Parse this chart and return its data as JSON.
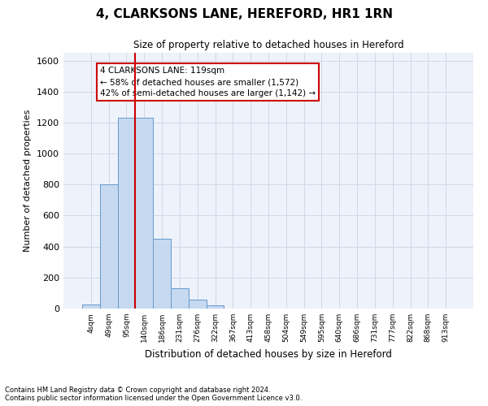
{
  "title": "4, CLARKSONS LANE, HEREFORD, HR1 1RN",
  "subtitle": "Size of property relative to detached houses in Hereford",
  "xlabel": "Distribution of detached houses by size in Hereford",
  "ylabel": "Number of detached properties",
  "bar_labels": [
    "4sqm",
    "49sqm",
    "95sqm",
    "140sqm",
    "186sqm",
    "231sqm",
    "276sqm",
    "322sqm",
    "367sqm",
    "413sqm",
    "458sqm",
    "504sqm",
    "549sqm",
    "595sqm",
    "640sqm",
    "686sqm",
    "731sqm",
    "777sqm",
    "822sqm",
    "868sqm",
    "913sqm"
  ],
  "bar_heights": [
    25,
    800,
    1230,
    1230,
    450,
    130,
    60,
    20,
    0,
    0,
    0,
    0,
    0,
    0,
    0,
    0,
    0,
    0,
    0,
    0,
    0
  ],
  "bar_color": "#c6d9f1",
  "bar_edge_color": "#6699cc",
  "vline_color": "#cc0000",
  "vline_x": 2.5,
  "annotation_text": "4 CLARKSONS LANE: 119sqm\n← 58% of detached houses are smaller (1,572)\n42% of semi-detached houses are larger (1,142) →",
  "annotation_box_color": "white",
  "annotation_box_edge_color": "#cc0000",
  "ylim": [
    0,
    1650
  ],
  "yticks": [
    0,
    200,
    400,
    600,
    800,
    1000,
    1200,
    1400,
    1600
  ],
  "grid_color": "#d0d8e8",
  "background_color": "#eef2fa",
  "footer_line1": "Contains HM Land Registry data © Crown copyright and database right 2024.",
  "footer_line2": "Contains public sector information licensed under the Open Government Licence v3.0."
}
